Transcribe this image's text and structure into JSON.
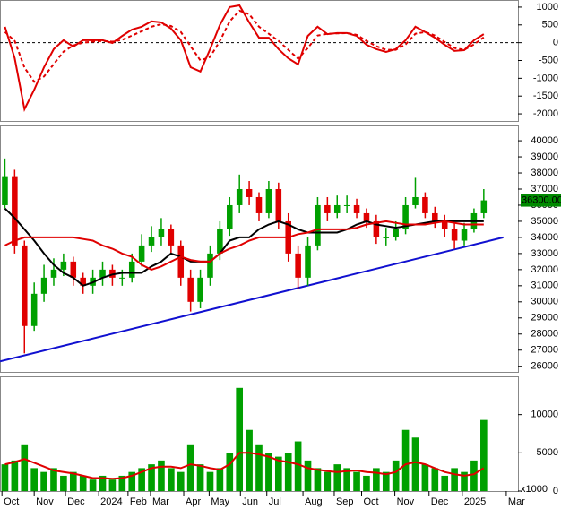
{
  "chart_data": [
    {
      "type": "line",
      "ylim": [
        -2200,
        1200
      ],
      "yticks": [
        1000,
        500,
        0,
        -500,
        -1000,
        -1500,
        -2000
      ],
      "zero_line": true,
      "xlim": [
        -0.5,
        52.5
      ],
      "x": [
        0,
        1,
        2,
        3,
        4,
        5,
        6,
        7,
        8,
        9,
        10,
        11,
        12,
        13,
        14,
        15,
        16,
        17,
        18,
        19,
        20,
        21,
        22,
        23,
        24,
        25,
        26,
        27,
        28,
        29,
        30,
        31,
        32,
        33,
        34,
        35,
        36,
        37,
        38,
        39,
        40,
        41,
        42,
        43,
        44,
        45,
        46,
        47,
        48,
        49
      ],
      "series": [
        {
          "color": "#e00000",
          "dash": false,
          "values": [
            446,
            -436,
            -1870,
            -1320,
            -690,
            -180,
            70,
            -110,
            70,
            70,
            70,
            -10,
            190,
            370,
            450,
            600,
            570,
            400,
            70,
            -690,
            -810,
            -180,
            500,
            1000,
            1050,
            570,
            140,
            140,
            -180,
            -440,
            -610,
            190,
            450,
            240,
            270,
            270,
            190,
            -60,
            -180,
            -260,
            -180,
            70,
            450,
            300,
            140,
            -60,
            -230,
            -210,
            70,
            240
          ]
        },
        {
          "color": "#e00000",
          "dash": true,
          "values": [
            300,
            50,
            -700,
            -1100,
            -950,
            -600,
            -250,
            -80,
            0,
            30,
            50,
            30,
            80,
            200,
            320,
            450,
            520,
            470,
            300,
            -100,
            -500,
            -400,
            50,
            600,
            900,
            800,
            450,
            250,
            50,
            -200,
            -450,
            -150,
            200,
            250,
            260,
            270,
            220,
            50,
            -100,
            -200,
            -200,
            -50,
            250,
            300,
            200,
            20,
            -150,
            -200,
            -50,
            150
          ]
        }
      ]
    },
    {
      "type": "candlestick",
      "ylim": [
        25650,
        40950
      ],
      "yticks": [
        26000,
        27000,
        28000,
        29000,
        30000,
        31000,
        32000,
        33000,
        34000,
        35000,
        36000,
        37000,
        38000,
        39000,
        40000
      ],
      "xlim": [
        -0.5,
        52.5
      ],
      "x": [
        0,
        1,
        2,
        3,
        4,
        5,
        6,
        7,
        8,
        9,
        10,
        11,
        12,
        13,
        14,
        15,
        16,
        17,
        18,
        19,
        20,
        21,
        22,
        23,
        24,
        25,
        26,
        27,
        28,
        29,
        30,
        31,
        32,
        33,
        34,
        35,
        36,
        37,
        38,
        39,
        40,
        41,
        42,
        43,
        44,
        45,
        46,
        47,
        48,
        49
      ],
      "up_color": "#00a000",
      "down_color": "#e00000",
      "open": [
        36000,
        37800,
        33500,
        28500,
        30500,
        31500,
        32000,
        32500,
        31500,
        31000,
        31500,
        32000,
        31500,
        31500,
        32500,
        33500,
        34000,
        34500,
        33500,
        31500,
        30000,
        31500,
        33000,
        34500,
        36000,
        37000,
        36500,
        35500,
        37000,
        35000,
        33000,
        31500,
        33500,
        36000,
        35500,
        36000,
        36000,
        35500,
        35000,
        34000,
        34000,
        34500,
        36000,
        36500,
        35500,
        35000,
        34500,
        33800,
        34500,
        35500
      ],
      "high": [
        38900,
        38200,
        33800,
        31200,
        32300,
        32700,
        33000,
        32800,
        31800,
        32000,
        32500,
        32300,
        32000,
        33000,
        34200,
        34700,
        35200,
        34800,
        33800,
        32000,
        32000,
        33500,
        35000,
        36500,
        37900,
        37500,
        36800,
        37500,
        37400,
        35500,
        33500,
        34000,
        36500,
        36500,
        36600,
        36600,
        36400,
        35800,
        35400,
        34600,
        35000,
        36500,
        37700,
        36800,
        35900,
        35400,
        34900,
        34900,
        35800,
        37000
      ],
      "low": [
        35800,
        33000,
        26800,
        28200,
        30000,
        31000,
        31600,
        31000,
        30500,
        30500,
        31000,
        31000,
        31000,
        31200,
        32200,
        33100,
        33500,
        33000,
        31000,
        29400,
        29600,
        31000,
        32600,
        34100,
        35500,
        36000,
        35000,
        35200,
        34500,
        32500,
        30800,
        31000,
        33200,
        35000,
        35200,
        35500,
        35200,
        34600,
        33600,
        33500,
        33800,
        34200,
        35800,
        35200,
        34600,
        34000,
        33300,
        33500,
        34300,
        35200
      ],
      "close": [
        37800,
        33500,
        28500,
        30500,
        31500,
        32000,
        32500,
        31500,
        31000,
        31500,
        32000,
        31500,
        31500,
        32500,
        33500,
        34000,
        34500,
        33500,
        31500,
        30000,
        31500,
        33000,
        34500,
        36000,
        37000,
        36500,
        35500,
        37000,
        35000,
        33000,
        31500,
        33500,
        36000,
        35500,
        36000,
        36000,
        35500,
        35000,
        34000,
        34000,
        34500,
        36000,
        36500,
        35500,
        35000,
        34500,
        33800,
        34500,
        35500,
        36300
      ],
      "last_label": "36300.00",
      "last_label_color": "#008a00",
      "series": [
        {
          "color": "#000000",
          "values": [
            35800,
            35200,
            34500,
            33800,
            33000,
            32300,
            31800,
            31500,
            31000,
            31200,
            31500,
            31700,
            31800,
            31800,
            31800,
            32200,
            32500,
            33000,
            32800,
            32500,
            32500,
            32500,
            33000,
            33800,
            34000,
            34000,
            34500,
            34800,
            35000,
            34800,
            34500,
            34300,
            34300,
            34300,
            34300,
            34500,
            34800,
            35000,
            34800,
            34700,
            34600,
            34700,
            34800,
            34900,
            35000,
            35000,
            35000,
            35000,
            35000,
            35000
          ]
        },
        {
          "color": "#e00000",
          "values": [
            33500,
            33800,
            34000,
            34000,
            34000,
            34000,
            34000,
            34000,
            33900,
            33800,
            33500,
            33300,
            33000,
            32800,
            32300,
            32000,
            32200,
            32500,
            32800,
            32600,
            32500,
            32500,
            33000,
            33300,
            33500,
            33800,
            34000,
            34000,
            34000,
            34000,
            34200,
            34300,
            34500,
            34500,
            34500,
            34500,
            34600,
            34800,
            34900,
            35000,
            34900,
            34800,
            34800,
            34800,
            34900,
            35000,
            34900,
            34800,
            34800,
            34800
          ]
        }
      ],
      "trendline": {
        "color": "#1010d0",
        "x": [
          -0.5,
          51
        ],
        "values": [
          26300,
          34000
        ]
      }
    },
    {
      "type": "bar",
      "ylim": [
        0,
        15000
      ],
      "yticks": [
        0,
        5000,
        10000
      ],
      "unit_label": "x1000",
      "xlim": [
        -0.5,
        52.5
      ],
      "x": [
        0,
        1,
        2,
        3,
        4,
        5,
        6,
        7,
        8,
        9,
        10,
        11,
        12,
        13,
        14,
        15,
        16,
        17,
        18,
        19,
        20,
        21,
        22,
        23,
        24,
        25,
        26,
        27,
        28,
        29,
        30,
        31,
        32,
        33,
        34,
        35,
        36,
        37,
        38,
        39,
        40,
        41,
        42,
        43,
        44,
        45,
        46,
        47,
        48,
        49
      ],
      "color": "#00a000",
      "values": [
        3500,
        4000,
        6000,
        3000,
        2500,
        3000,
        2000,
        2500,
        2000,
        1500,
        2000,
        1500,
        2000,
        2500,
        3000,
        3500,
        4000,
        3000,
        2500,
        6000,
        3500,
        2500,
        3000,
        5000,
        13500,
        8000,
        6000,
        5000,
        4500,
        5000,
        6500,
        4000,
        3000,
        2500,
        3500,
        3000,
        2500,
        2000,
        3000,
        2500,
        4000,
        8000,
        7000,
        3500,
        3000,
        2000,
        3000,
        2500,
        4000,
        9300
      ],
      "series": [
        {
          "color": "#e00000",
          "values": [
            3500,
            3800,
            4200,
            3700,
            3200,
            2700,
            2500,
            2300,
            2000,
            1700,
            1700,
            1600,
            1700,
            2000,
            2500,
            3000,
            3200,
            3200,
            3000,
            3500,
            3300,
            3000,
            2800,
            3500,
            5000,
            5000,
            4800,
            4500,
            4000,
            3800,
            3500,
            3000,
            2800,
            2600,
            2500,
            2600,
            2700,
            2500,
            2400,
            2200,
            2500,
            3500,
            3800,
            3500,
            3000,
            2500,
            2200,
            2000,
            2200,
            3000
          ]
        }
      ],
      "xticks": [
        {
          "value": -0.3,
          "label": "Oct"
        },
        {
          "value": 3,
          "label": "Nov"
        },
        {
          "value": 6.2,
          "label": "Dec"
        },
        {
          "value": 9.6,
          "label": "2024"
        },
        {
          "value": 12.6,
          "label": "Feb"
        },
        {
          "value": 14.9,
          "label": "Mar"
        },
        {
          "value": 18.3,
          "label": "Apr"
        },
        {
          "value": 20.9,
          "label": "May"
        },
        {
          "value": 24.1,
          "label": "Jun"
        },
        {
          "value": 26.8,
          "label": "Jul"
        },
        {
          "value": 30.5,
          "label": "Aug"
        },
        {
          "value": 33.7,
          "label": "Sep"
        },
        {
          "value": 36.5,
          "label": "Oct"
        },
        {
          "value": 39.9,
          "label": "Nov"
        },
        {
          "value": 43.4,
          "label": "Dec"
        },
        {
          "value": 46.8,
          "label": "2025"
        },
        {
          "value": 51.3,
          "label": "Mar"
        }
      ]
    }
  ]
}
